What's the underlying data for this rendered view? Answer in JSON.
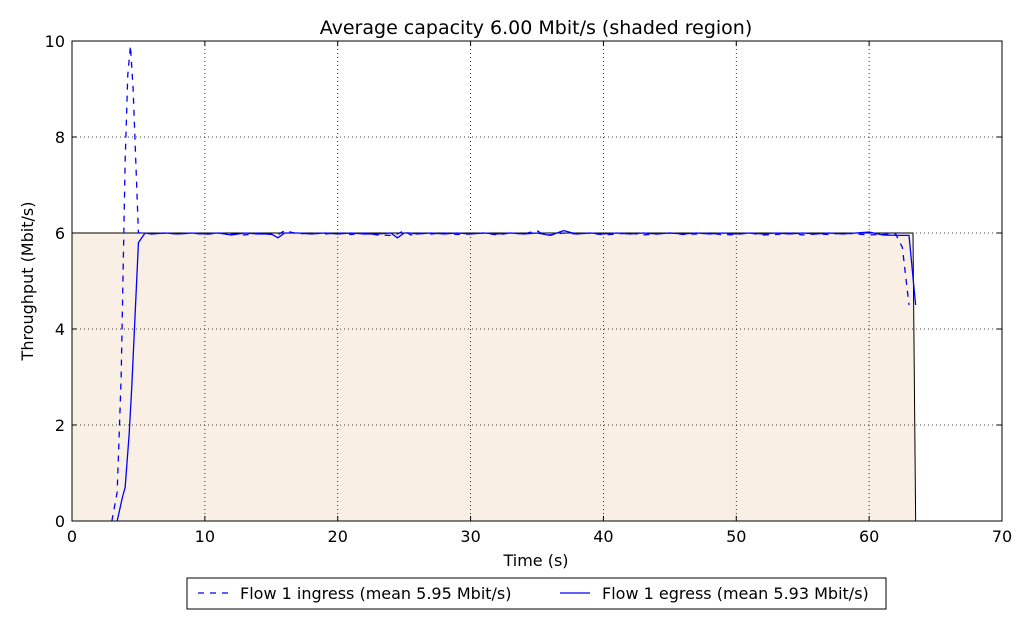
{
  "chart_data": {
    "type": "line",
    "title": "Average capacity 6.00 Mbit/s (shaded region)",
    "xlabel": "Time (s)",
    "ylabel": "Throughput (Mbit/s)",
    "xlim": [
      0,
      70
    ],
    "ylim": [
      0,
      10
    ],
    "xticks": [
      0,
      10,
      20,
      30,
      40,
      50,
      60,
      70
    ],
    "yticks": [
      0,
      2,
      4,
      6,
      8,
      10
    ],
    "grid": true,
    "capacity": {
      "label": "Average capacity 6.00 Mbit/s",
      "x": [
        0,
        63.3,
        63.5
      ],
      "y": [
        6.0,
        6.0,
        0.0
      ],
      "fill_color": "#f9efe5"
    },
    "series": [
      {
        "name": "Flow 1 ingress (mean 5.95 Mbit/s)",
        "style": "dashed",
        "color": "#0000ff",
        "x": [
          3.0,
          3.4,
          3.7,
          4.0,
          4.2,
          4.4,
          4.6,
          4.8,
          5.0,
          5.5,
          6,
          7,
          8,
          9,
          10,
          11,
          12,
          13,
          14,
          15,
          15.6,
          16,
          17,
          18,
          19,
          20,
          21,
          22,
          23,
          24,
          24.5,
          25,
          25.5,
          26,
          27,
          28,
          29,
          30,
          31,
          32,
          33,
          34,
          35,
          35.5,
          36,
          37,
          38,
          39,
          40,
          41,
          42,
          43,
          44,
          45,
          46,
          47,
          48,
          49,
          50,
          51,
          52,
          53,
          54,
          55,
          56,
          57,
          58,
          59,
          60,
          61,
          62,
          62.5,
          63.0
        ],
        "values": [
          0.0,
          0.6,
          3.0,
          7.5,
          9.3,
          9.9,
          9.0,
          7.5,
          6.0,
          6.0,
          5.98,
          6.0,
          5.98,
          6.0,
          5.97,
          6.0,
          5.98,
          5.96,
          6.0,
          5.97,
          5.98,
          6.05,
          5.98,
          6.0,
          5.98,
          6.0,
          5.97,
          6.0,
          5.96,
          5.95,
          5.98,
          6.05,
          5.96,
          6.0,
          5.98,
          6.0,
          5.97,
          5.98,
          6.0,
          5.96,
          6.0,
          5.98,
          6.05,
          5.96,
          5.96,
          6.0,
          5.98,
          6.0,
          5.96,
          5.98,
          6.0,
          5.96,
          5.98,
          6.0,
          5.97,
          5.98,
          6.0,
          5.96,
          5.97,
          6.0,
          5.96,
          5.97,
          6.0,
          5.96,
          5.98,
          5.97,
          6.0,
          5.98,
          5.96,
          5.97,
          5.98,
          5.7,
          4.5
        ]
      },
      {
        "name": "Flow 1 egress (mean 5.93 Mbit/s)",
        "style": "solid",
        "color": "#0000ff",
        "x": [
          3.4,
          3.8,
          4.0,
          4.3,
          4.5,
          5.0,
          5.5,
          6,
          7,
          8,
          9,
          10,
          11,
          12,
          13,
          14,
          15,
          15.5,
          16,
          17,
          18,
          19,
          20,
          21,
          22,
          23,
          24,
          24.5,
          25,
          25.5,
          26,
          27,
          28,
          29,
          30,
          31,
          32,
          33,
          34,
          35,
          36,
          37,
          38,
          39,
          40,
          41,
          42,
          43,
          44,
          45,
          46,
          47,
          48,
          49,
          50,
          51,
          52,
          53,
          54,
          55,
          56,
          57,
          58,
          59,
          60,
          61,
          62,
          63.0,
          63.5
        ],
        "values": [
          0.0,
          0.5,
          0.7,
          1.8,
          2.8,
          5.8,
          6.0,
          5.98,
          6.0,
          5.98,
          6.0,
          5.98,
          6.0,
          5.96,
          6.0,
          5.98,
          5.98,
          5.9,
          6.0,
          6.0,
          5.98,
          6.0,
          5.98,
          6.0,
          5.98,
          5.98,
          6.0,
          5.9,
          6.0,
          6.0,
          5.98,
          6.0,
          5.98,
          6.0,
          5.98,
          6.0,
          5.98,
          6.0,
          5.98,
          6.0,
          5.95,
          6.05,
          5.98,
          6.0,
          5.98,
          6.0,
          5.98,
          6.0,
          5.98,
          6.0,
          5.98,
          6.0,
          5.98,
          6.0,
          5.98,
          6.0,
          5.98,
          6.0,
          5.98,
          6.0,
          5.98,
          6.0,
          5.98,
          6.0,
          6.02,
          5.96,
          5.95,
          5.95,
          4.5
        ]
      }
    ],
    "legend": {
      "placement": "bottom-center",
      "entries": [
        "Flow 1 ingress (mean 5.95 Mbit/s)",
        "Flow 1 egress (mean 5.93 Mbit/s)"
      ]
    }
  }
}
